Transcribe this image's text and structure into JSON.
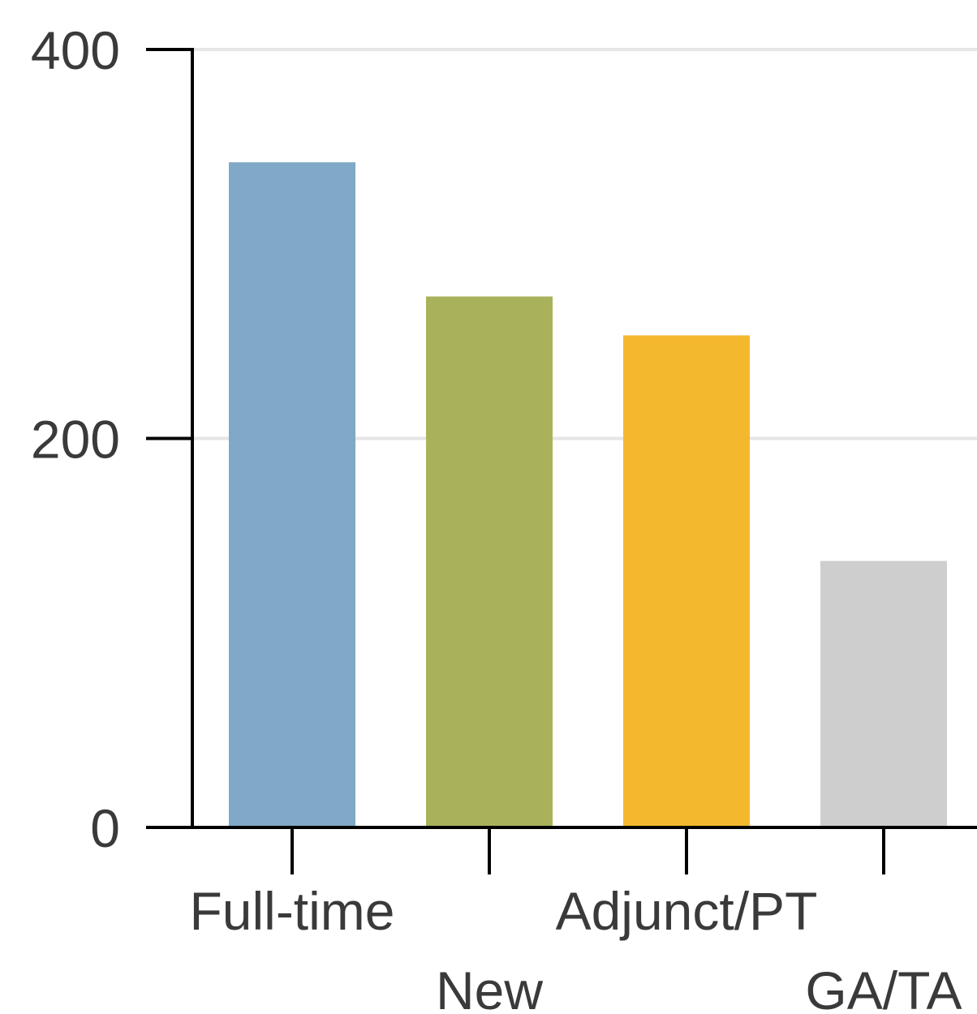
{
  "chart_data": {
    "type": "bar",
    "categories": [
      "Full-time",
      "New",
      "Adjunct/PT",
      "GA/TA"
    ],
    "values": [
      342,
      273,
      253,
      137
    ],
    "colors": [
      "#7FA9C6",
      "#A9B25A",
      "#F4B82F",
      "#CECECE"
    ],
    "ylim": [
      0,
      400
    ],
    "yticks": [
      0,
      200,
      400
    ],
    "title": "",
    "xlabel": "",
    "ylabel": "",
    "grid": true,
    "legend": "none"
  },
  "style": {
    "axis_color": "#000000",
    "grid_color": "#E6E6E6",
    "text_color": "#3A3A3A"
  }
}
